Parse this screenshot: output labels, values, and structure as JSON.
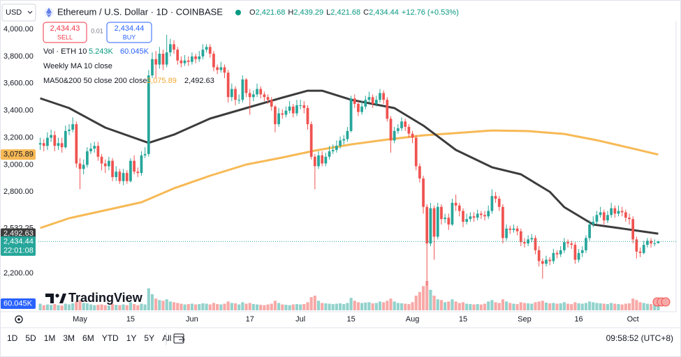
{
  "toolbar": {
    "currency": "USD",
    "symbol": "Ethereum / U.S. Dollar · 1D · COINBASE",
    "ohlc": [
      {
        "key": "O",
        "value": "2,421.68"
      },
      {
        "key": "H",
        "value": "2,439.29"
      },
      {
        "key": "L",
        "value": "2,421.68"
      },
      {
        "key": "C",
        "value": "2,434.44"
      }
    ],
    "change": "+12.76 (+0.53%)"
  },
  "trade": {
    "sell_price": "2,434.43",
    "sell": "SELL",
    "spread": "0.01",
    "buy_price": "2,434.44",
    "buy": "BUY"
  },
  "legend": {
    "volume": "Vol · ETH 10",
    "volume_ma": "5.243K",
    "weekly_ma": "Weekly MA 10 close",
    "ma_label": "MA50&200 50 close 200 close"
  },
  "logo": "TradingView",
  "timeframes": [
    "1D",
    "5D",
    "1M",
    "3M",
    "6M",
    "YTD",
    "1Y",
    "5Y",
    "All"
  ],
  "clock": "09:58:52 (UTC+8)",
  "chart_data": {
    "type": "candlestick",
    "up_color": "#26a69a",
    "down_color": "#ef5350",
    "categories": [
      null,
      null,
      null,
      null,
      null,
      null,
      null,
      null,
      null,
      null,
      null,
      "May",
      null,
      null,
      null,
      null,
      null,
      null,
      null,
      null,
      null,
      null,
      null,
      null,
      null,
      "15",
      null,
      null,
      null,
      null,
      null,
      null,
      null,
      null,
      null,
      null,
      null,
      null,
      null,
      null,
      null,
      null,
      "Jun",
      null,
      null,
      null,
      null,
      null,
      null,
      null,
      null,
      null,
      null,
      null,
      null,
      null,
      null,
      null,
      "17",
      null,
      null,
      null,
      null,
      null,
      null,
      null,
      null,
      null,
      null,
      null,
      null,
      null,
      "Jul",
      null,
      null,
      null,
      null,
      null,
      null,
      null,
      null,
      null,
      null,
      null,
      null,
      null,
      "15",
      null,
      null,
      null,
      null,
      null,
      null,
      null,
      null,
      null,
      null,
      null,
      null,
      null,
      null,
      null,
      null,
      "Aug",
      null,
      null,
      null,
      null,
      null,
      null,
      null,
      null,
      null,
      null,
      null,
      null,
      null,
      "15",
      null,
      null,
      null,
      null,
      null,
      null,
      null,
      null,
      null,
      null,
      null,
      null,
      null,
      null,
      null,
      null,
      "Sep",
      null,
      null,
      null,
      null,
      null,
      null,
      null,
      null,
      null,
      null,
      null,
      null,
      null,
      null,
      "16",
      null,
      null,
      null,
      null,
      null,
      null,
      null,
      null,
      null,
      null,
      null,
      null,
      null,
      null,
      "Oct",
      null,
      null,
      null,
      null,
      null,
      null,
      null
    ],
    "open": [
      3150,
      3160,
      3140,
      3200,
      3220,
      3140,
      3160,
      3130,
      3250,
      3260,
      3300,
      3010,
      2970,
      3000,
      3100,
      3120,
      3140,
      3060,
      3010,
      2990,
      3030,
      2910,
      2950,
      2880,
      2940,
      2880,
      3030,
      2950,
      2940,
      3070,
      3080,
      3660,
      3780,
      3740,
      3820,
      3740,
      3830,
      3890,
      3850,
      3770,
      3750,
      3770,
      3760,
      3800,
      3780,
      3800,
      3850,
      3870,
      3820,
      3720,
      3700,
      3720,
      3680,
      3500,
      3560,
      3480,
      3480,
      3630,
      3530,
      3500,
      3520,
      3560,
      3520,
      3500,
      3480,
      3430,
      3300,
      3380,
      3370,
      3400,
      3430,
      3380,
      3440,
      3440,
      3420,
      3300,
      3060,
      2990,
      3070,
      3010,
      3060,
      3100,
      3110,
      3140,
      3180,
      3190,
      3250,
      3490,
      3450,
      3390,
      3430,
      3480,
      3500,
      3450,
      3480,
      3530,
      3480,
      3340,
      3180,
      3250,
      3270,
      3320,
      3280,
      3230,
      3200,
      2990,
      2900,
      2690,
      2420,
      2680,
      2470,
      2690,
      2600,
      2610,
      2560,
      2720,
      2700,
      2660,
      2580,
      2600,
      2620,
      2610,
      2640,
      2630,
      2620,
      2660,
      2770,
      2750,
      2690,
      2460,
      2530,
      2520,
      2530,
      2510,
      2430,
      2420,
      2450,
      2460,
      2370,
      2290,
      2270,
      2300,
      2290,
      2350,
      2340,
      2370,
      2430,
      2420,
      2410,
      2300,
      2350,
      2370,
      2460,
      2560,
      2580,
      2630,
      2650,
      2590,
      2630,
      2680,
      2640,
      2660,
      2650,
      2610,
      2600,
      2450,
      2360,
      2350,
      2410,
      2440,
      2420,
      2421.68
    ],
    "high": [
      3200,
      3190,
      3240,
      3260,
      3250,
      3200,
      3200,
      3290,
      3300,
      3350,
      3320,
      3050,
      3040,
      3130,
      3160,
      3170,
      3170,
      3080,
      3040,
      3060,
      3050,
      2990,
      2970,
      2970,
      2960,
      3050,
      3070,
      2980,
      3100,
      3130,
      3700,
      3830,
      3840,
      3870,
      3850,
      3960,
      3930,
      3920,
      3870,
      3800,
      3810,
      3800,
      3830,
      3820,
      3840,
      3890,
      3890,
      3890,
      3840,
      3740,
      3760,
      3740,
      3700,
      3600,
      3580,
      3520,
      3660,
      3640,
      3560,
      3550,
      3600,
      3580,
      3540,
      3520,
      3500,
      3440,
      3420,
      3410,
      3430,
      3470,
      3450,
      3480,
      3480,
      3470,
      3440,
      3320,
      3080,
      3100,
      3100,
      3090,
      3140,
      3150,
      3180,
      3210,
      3220,
      3280,
      3510,
      3520,
      3470,
      3470,
      3510,
      3540,
      3520,
      3510,
      3560,
      3550,
      3500,
      3360,
      3280,
      3300,
      3350,
      3340,
      3300,
      3250,
      3220,
      3010,
      2920,
      2710,
      2720,
      2700,
      2720,
      2710,
      2640,
      2640,
      2750,
      2780,
      2720,
      2680,
      2640,
      2650,
      2650,
      2670,
      2660,
      2660,
      2700,
      2820,
      2800,
      2770,
      2710,
      2560,
      2550,
      2560,
      2550,
      2530,
      2460,
      2480,
      2490,
      2480,
      2400,
      2310,
      2330,
      2320,
      2380,
      2370,
      2400,
      2460,
      2450,
      2440,
      2430,
      2380,
      2400,
      2480,
      2590,
      2620,
      2660,
      2690,
      2670,
      2660,
      2720,
      2700,
      2700,
      2690,
      2670,
      2640,
      2620,
      2470,
      2390,
      2440,
      2460,
      2460,
      2450,
      2439.29
    ],
    "low": [
      3110,
      3100,
      3110,
      3170,
      3100,
      3110,
      3090,
      3120,
      3220,
      3240,
      2980,
      2820,
      2930,
      2980,
      3080,
      3090,
      3030,
      2960,
      2940,
      2960,
      2880,
      2880,
      2860,
      2850,
      2860,
      2870,
      2930,
      2910,
      2920,
      3050,
      3060,
      3640,
      3640,
      3710,
      3700,
      3720,
      3800,
      3820,
      3740,
      3720,
      3730,
      3730,
      3740,
      3750,
      3760,
      3780,
      3830,
      3790,
      3690,
      3670,
      3680,
      3640,
      3460,
      3470,
      3440,
      3450,
      3460,
      3500,
      3370,
      3470,
      3500,
      3490,
      3470,
      3450,
      3400,
      3240,
      3280,
      3340,
      3350,
      3380,
      3350,
      3360,
      3410,
      3380,
      3260,
      3040,
      2820,
      2970,
      2990,
      2990,
      3040,
      3080,
      3090,
      3120,
      3150,
      3170,
      3240,
      3420,
      3360,
      3370,
      3410,
      3460,
      3420,
      3430,
      3460,
      3450,
      3320,
      3090,
      3160,
      3230,
      3250,
      3250,
      3200,
      3160,
      2960,
      2870,
      2640,
      2110,
      2400,
      2300,
      2450,
      2560,
      2570,
      2520,
      2550,
      2660,
      2620,
      2540,
      2560,
      2580,
      2580,
      2590,
      2600,
      2590,
      2600,
      2640,
      2720,
      2660,
      2420,
      2440,
      2490,
      2500,
      2480,
      2400,
      2390,
      2400,
      2430,
      2340,
      2250,
      2160,
      2250,
      2260,
      2270,
      2310,
      2320,
      2350,
      2390,
      2380,
      2270,
      2280,
      2320,
      2350,
      2440,
      2540,
      2560,
      2610,
      2560,
      2570,
      2610,
      2610,
      2620,
      2620,
      2580,
      2560,
      2420,
      2310,
      2320,
      2340,
      2390,
      2390,
      2400,
      2421.68
    ],
    "close": [
      3160,
      3140,
      3200,
      3220,
      3140,
      3160,
      3130,
      3250,
      3260,
      3300,
      3010,
      2970,
      3000,
      3100,
      3120,
      3140,
      3060,
      3010,
      2990,
      3030,
      2910,
      2950,
      2880,
      2940,
      2880,
      3030,
      2950,
      2940,
      3070,
      3080,
      3660,
      3780,
      3740,
      3820,
      3740,
      3830,
      3890,
      3850,
      3770,
      3750,
      3770,
      3760,
      3800,
      3780,
      3800,
      3850,
      3870,
      3820,
      3720,
      3700,
      3720,
      3680,
      3500,
      3560,
      3480,
      3480,
      3630,
      3530,
      3500,
      3520,
      3560,
      3520,
      3500,
      3480,
      3430,
      3300,
      3380,
      3370,
      3400,
      3430,
      3380,
      3440,
      3440,
      3420,
      3300,
      3060,
      2990,
      3070,
      3010,
      3060,
      3100,
      3110,
      3140,
      3180,
      3190,
      3250,
      3490,
      3450,
      3390,
      3430,
      3480,
      3500,
      3450,
      3480,
      3530,
      3480,
      3340,
      3180,
      3250,
      3270,
      3320,
      3280,
      3230,
      3200,
      2990,
      2900,
      2690,
      2420,
      2680,
      2470,
      2690,
      2600,
      2610,
      2560,
      2720,
      2700,
      2660,
      2580,
      2600,
      2620,
      2610,
      2640,
      2630,
      2620,
      2660,
      2770,
      2750,
      2690,
      2460,
      2530,
      2520,
      2530,
      2510,
      2430,
      2420,
      2450,
      2460,
      2370,
      2290,
      2270,
      2300,
      2290,
      2350,
      2340,
      2370,
      2430,
      2420,
      2410,
      2300,
      2350,
      2370,
      2460,
      2560,
      2580,
      2630,
      2650,
      2590,
      2630,
      2680,
      2640,
      2660,
      2650,
      2610,
      2600,
      2450,
      2360,
      2350,
      2410,
      2440,
      2420,
      2421.68,
      2434.44
    ],
    "volume": {
      "values": [
        90,
        70,
        80,
        75,
        85,
        70,
        65,
        90,
        80,
        95,
        120,
        140,
        100,
        95,
        80,
        70,
        75,
        80,
        70,
        65,
        90,
        75,
        70,
        80,
        70,
        110,
        85,
        70,
        90,
        80,
        300,
        220,
        160,
        140,
        130,
        150,
        120,
        110,
        100,
        90,
        80,
        85,
        90,
        80,
        85,
        95,
        90,
        80,
        100,
        85,
        80,
        90,
        120,
        100,
        95,
        80,
        110,
        90,
        100,
        85,
        80,
        75,
        70,
        80,
        90,
        130,
        100,
        80,
        75,
        70,
        80,
        85,
        80,
        85,
        110,
        180,
        200,
        130,
        100,
        95,
        90,
        85,
        90,
        95,
        85,
        100,
        170,
        130,
        110,
        100,
        105,
        110,
        95,
        100,
        120,
        110,
        130,
        160,
        120,
        100,
        95,
        90,
        85,
        110,
        200,
        250,
        330,
        400,
        280,
        200,
        150,
        140,
        110,
        120,
        150,
        120,
        100,
        110,
        90,
        85,
        80,
        85,
        80,
        90,
        120,
        140,
        110,
        100,
        150,
        120,
        100,
        90,
        85,
        110,
        100,
        95,
        90,
        110,
        120,
        130,
        105,
        95,
        100,
        90,
        95,
        110,
        90,
        85,
        110,
        95,
        90,
        100,
        120,
        110,
        100,
        95,
        90,
        85,
        100,
        90,
        85,
        80,
        90,
        95,
        160,
        140,
        110,
        100,
        90,
        85,
        80,
        60.045
      ],
      "last_label": "60.045K"
    },
    "lines": [
      {
        "color": "#f7b955",
        "x": [
          0,
          8,
          28,
          37,
          47,
          57,
          67,
          76,
          86,
          96,
          106,
          115,
          125,
          135,
          145,
          154,
          164,
          171
        ],
        "values": [
          2534,
          2606,
          2724,
          2827,
          2920,
          3002,
          3054,
          3105,
          3151,
          3187,
          3218,
          3234,
          3254,
          3249,
          3228,
          3182,
          3120,
          3075.89
        ],
        "last": {
          "value": 3075.89,
          "label": "3,075.89"
        }
      },
      {
        "color": "#3c3c3c",
        "x": [
          0,
          8,
          18,
          30,
          37,
          47,
          57,
          67,
          74,
          78,
          86,
          98,
          106,
          115,
          125,
          133,
          141,
          145,
          153,
          160,
          171
        ],
        "values": [
          3491,
          3419,
          3275,
          3162,
          3223,
          3342,
          3419,
          3496,
          3547,
          3547,
          3480,
          3419,
          3290,
          3110,
          2982,
          2930,
          2801,
          2688,
          2560,
          2534,
          2492.63
        ],
        "last": {
          "value": 2492.63,
          "label": "2,492.63"
        }
      }
    ],
    "last_price": {
      "value": 2434.44,
      "label": "2,434.44"
    },
    "countdown": "22:01:08",
    "ylim": [
      1927,
      4062
    ],
    "yticks": [
      {
        "value": 4000,
        "label": "4,000.00"
      },
      {
        "value": 3800,
        "label": "3,800.00"
      },
      {
        "value": 3600,
        "label": "3,600.00"
      },
      {
        "value": 3400,
        "label": "3,400.00"
      },
      {
        "value": 3200,
        "label": "3,200.00"
      },
      {
        "value": 3000,
        "label": "3,000.00"
      },
      {
        "value": 2800,
        "label": "2,800.00"
      },
      {
        "value": 2532.25,
        "label": "2,532.25"
      },
      {
        "value": 2200,
        "label": "2,200.00"
      }
    ],
    "grid": false
  }
}
